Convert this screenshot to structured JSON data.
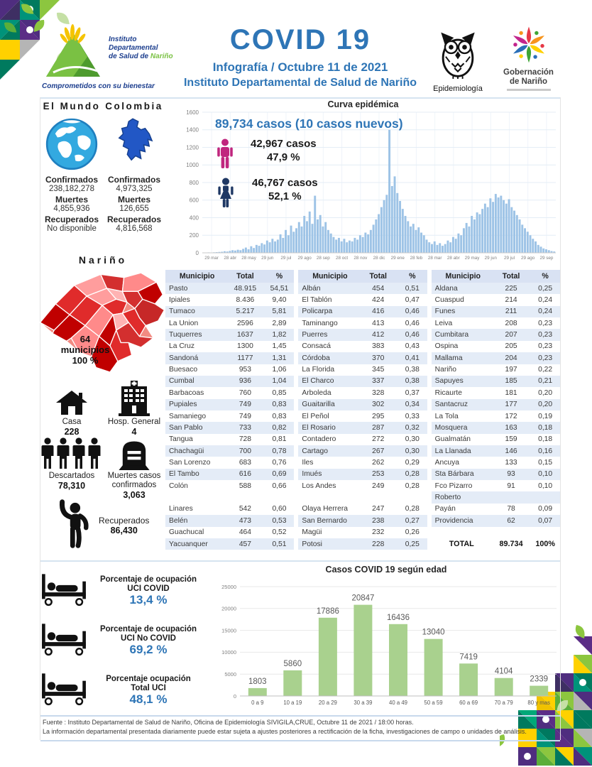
{
  "header": {
    "title": "COVID 19",
    "subtitle": "Infografía / Octubre 11 de 2021",
    "institution": "Instituto Departamental de Salud de Nariño",
    "logo_text_1": "Instituto",
    "logo_text_2": "Departamental",
    "logo_text_3": "de Salud de",
    "logo_text_3b": "Nariño",
    "logo_tagline": "Comprometidos con su bienestar",
    "epidemiologia_label": "Epidemiología",
    "gobernacion_line1": "Gobernación",
    "gobernacion_line2": "de Nariño"
  },
  "world": {
    "heading": "El Mundo",
    "confirmados_label": "Confirmados",
    "confirmados": "238,182,278",
    "muertes_label": "Muertes",
    "muertes": "4,855,936",
    "recuperados_label": "Recuperados",
    "recuperados": "No disponible"
  },
  "colombia": {
    "heading": "Colombia",
    "confirmados_label": "Confirmados",
    "confirmados": "4,973,325",
    "muertes_label": "Muertes",
    "muertes": "126,655",
    "recuperados_label": "Recuperados",
    "recuperados": "4,816,568"
  },
  "epicurve_stats": {
    "total": "89,734 casos (10 casos nuevos)",
    "male_cases": "42,967  casos",
    "male_pct": "47,9 %",
    "female_cases": "46,767  casos",
    "female_pct": "52,1 %"
  },
  "narino": {
    "heading": "Nariño",
    "municipios_count": "64",
    "municipios_label": "municipios",
    "municipios_pct": "100 %",
    "casa_label": "Casa",
    "casa_value": "228",
    "hosp_label": "Hosp. General",
    "hosp_value": "4",
    "descartados_label": "Descartados",
    "descartados_value": "78,310",
    "muertes_label_1": "Muertes casos",
    "muertes_label_2": "confirmados",
    "muertes_value": "3,063",
    "recuperados_label": "Recuperados",
    "recuperados_value": "86,430"
  },
  "table": {
    "headers": [
      "Municipio",
      "Total",
      "%"
    ],
    "total_label": "TOTAL",
    "groups": [
      [
        [
          "Pasto",
          "48.915",
          "54,51"
        ],
        [
          "Ipiales",
          "8.436",
          "9,40"
        ],
        [
          "Tumaco",
          "5.217",
          "5,81"
        ],
        [
          "La Union",
          "2596",
          "2,89"
        ],
        [
          "Tuquerres",
          "1637",
          "1,82"
        ],
        [
          "La Cruz",
          "1300",
          "1,45"
        ],
        [
          "Sandoná",
          "1177",
          "1,31"
        ],
        [
          "Buesaco",
          "953",
          "1,06"
        ],
        [
          "Cumbal",
          "936",
          "1,04"
        ],
        [
          "Barbacoas",
          "760",
          "0,85"
        ],
        [
          "Pupiales",
          "749",
          "0,83"
        ],
        [
          "Samaniego",
          "749",
          "0,83"
        ],
        [
          "San Pablo",
          "733",
          "0,82"
        ],
        [
          "Tangua",
          "728",
          "0,81"
        ],
        [
          "Chachagüi",
          "700",
          "0,78"
        ],
        [
          "San Lorenzo",
          "683",
          "0,76"
        ],
        [
          "El Tambo",
          "616",
          "0,69"
        ],
        [
          "Colón",
          "588",
          "0,66"
        ],
        [
          "",
          "",
          ""
        ],
        [
          "Linares",
          "542",
          "0,60"
        ],
        [
          "Belén",
          "473",
          "0,53"
        ],
        [
          "Guachucal",
          "464",
          "0,52"
        ],
        [
          "Yacuanquer",
          "457",
          "0,51"
        ]
      ],
      [
        [
          "Albán",
          "454",
          "0,51"
        ],
        [
          "El Tablón",
          "424",
          "0,47"
        ],
        [
          "Policarpa",
          "416",
          "0,46"
        ],
        [
          "Taminango",
          "413",
          "0,46"
        ],
        [
          "Puerres",
          "412",
          "0,46"
        ],
        [
          "Consacá",
          "383",
          "0,43"
        ],
        [
          "Córdoba",
          "370",
          "0,41"
        ],
        [
          "La Florida",
          "345",
          "0,38"
        ],
        [
          "El Charco",
          "337",
          "0,38"
        ],
        [
          "Arboleda",
          "328",
          "0,37"
        ],
        [
          "Guaitarilla",
          "302",
          "0,34"
        ],
        [
          "El Peñol",
          "295",
          "0,33"
        ],
        [
          "El Rosario",
          "287",
          "0,32"
        ],
        [
          "Contadero",
          "272",
          "0,30"
        ],
        [
          "Cartago",
          "267",
          "0,30"
        ],
        [
          "Iles",
          "262",
          "0,29"
        ],
        [
          "Imués",
          "253",
          "0,28"
        ],
        [
          "Los Andes",
          "249",
          "0,28"
        ],
        [
          "",
          "",
          ""
        ],
        [
          "Olaya Herrera",
          "247",
          "0,28"
        ],
        [
          "San Bernardo",
          "238",
          "0,27"
        ],
        [
          "Magüi",
          "232",
          "0,26"
        ],
        [
          "Potosi",
          "228",
          "0,25"
        ]
      ],
      [
        [
          "Aldana",
          "225",
          "0,25"
        ],
        [
          "Cuaspud",
          "214",
          "0,24"
        ],
        [
          "Funes",
          "211",
          "0,24"
        ],
        [
          "Leiva",
          "208",
          "0,23"
        ],
        [
          "Cumbitara",
          "207",
          "0,23"
        ],
        [
          "Ospina",
          "205",
          "0,23"
        ],
        [
          "Mallama",
          "204",
          "0,23"
        ],
        [
          "Nariño",
          "197",
          "0,22"
        ],
        [
          "Sapuyes",
          "185",
          "0,21"
        ],
        [
          "Ricaurte",
          "181",
          "0,20"
        ],
        [
          "Santacruz",
          "177",
          "0,20"
        ],
        [
          "La Tola",
          "172",
          "0,19"
        ],
        [
          "Mosquera",
          "163",
          "0,18"
        ],
        [
          "Gualmatán",
          "159",
          "0,18"
        ],
        [
          "La Llanada",
          "146",
          "0,16"
        ],
        [
          "Ancuya",
          "133",
          "0,15"
        ],
        [
          "Sta Bárbara",
          "93",
          "0,10"
        ],
        [
          "Fco Pizarro",
          "91",
          "0,10"
        ],
        [
          "Roberto",
          "",
          ""
        ],
        [
          "Payán",
          "78",
          "0,09"
        ],
        [
          "Providencia",
          "62",
          "0,07"
        ],
        [
          "",
          "",
          ""
        ],
        [
          "TOTAL",
          "89.734",
          "100%"
        ]
      ]
    ]
  },
  "uci": {
    "items": [
      {
        "line1": "Porcentaje de ocupación",
        "line2": "UCI COVID",
        "value": "13,4  %"
      },
      {
        "line1": "Porcentaje de ocupación",
        "line2": "UCI No COVID",
        "value": "69,2  %"
      },
      {
        "line1": "Porcentaje ocupación",
        "line2": "Total UCI",
        "value": "48,1  %"
      }
    ]
  },
  "footer": {
    "line1": "Fuente : Instituto Departamental de Salud de Nariño, Oficina de Epidemiología SIVIGILA,CRUE,  Octubre 11 de 2021 / 18:00  horas.",
    "line2": "La información departamental presentada diariamente puede estar sujeta a ajustes posteriores a  rectificación de la ficha, investigaciones de campo o unidades de análisis."
  },
  "colors": {
    "accent_blue": "#2E75B6",
    "male_pink": "#C0267E",
    "female_navy": "#1F3864",
    "epicurve_bar": "#9DC3E6",
    "age_bar": "#A9D18E",
    "table_stripe": "#E4ECF7",
    "grid_line": "#E4EDF6",
    "axis_text": "#808080",
    "map_red_dark": "#C00000",
    "map_red_light": "#FF9D9D"
  },
  "icons": {
    "world": "globe-icon",
    "colombia": "colombia-map-icon",
    "male": "male-figure-icon",
    "female": "female-figure-icon",
    "house": "house-icon",
    "hospital": "hospital-icon",
    "people": "people-group-icon",
    "tombstone": "tombstone-icon",
    "recovered": "person-waving-icon",
    "bed": "hospital-bed-icon",
    "owl": "owl-icon",
    "star": "gobernacion-star-icon"
  },
  "chart_data": [
    {
      "name": "curva_epidemica",
      "type": "bar",
      "title": "Curva epidémica",
      "annotation": "89,734 casos (10 casos nuevos)",
      "ylim": [
        0,
        1600
      ],
      "yticks": [
        0,
        200,
        400,
        600,
        800,
        1000,
        1200,
        1400,
        1600
      ],
      "x_tick_labels": [
        "29 mar",
        "28 abr",
        "28 may",
        "29 jun",
        "29 jul",
        "29 ago",
        "28 sep",
        "28 oct",
        "28 nov",
        "28 dic",
        "29 ene",
        "28 feb",
        "28 mar",
        "28 abr",
        "29 may",
        "29 jun",
        "29 jul",
        "29 ago",
        "29 sep"
      ],
      "values": [
        2,
        3,
        5,
        4,
        6,
        8,
        10,
        12,
        18,
        15,
        22,
        30,
        26,
        35,
        30,
        45,
        60,
        40,
        75,
        55,
        90,
        80,
        110,
        95,
        140,
        120,
        160,
        130,
        150,
        210,
        170,
        260,
        200,
        310,
        240,
        280,
        350,
        300,
        420,
        360,
        470,
        330,
        650,
        380,
        430,
        300,
        350,
        260,
        220,
        180,
        150,
        170,
        130,
        160,
        120,
        140,
        130,
        170,
        150,
        200,
        180,
        230,
        210,
        260,
        320,
        380,
        440,
        520,
        600,
        660,
        1400,
        760,
        870,
        680,
        590,
        500,
        420,
        360,
        300,
        330,
        260,
        290,
        230,
        200,
        150,
        120,
        100,
        130,
        90,
        110,
        80,
        100,
        140,
        120,
        180,
        160,
        220,
        200,
        280,
        340,
        300,
        420,
        380,
        460,
        440,
        500,
        560,
        520,
        620,
        580,
        670,
        630,
        650,
        600,
        560,
        610,
        520,
        480,
        430,
        380,
        320,
        280,
        240,
        200,
        160,
        130,
        90,
        70,
        50,
        40,
        30,
        20,
        15
      ]
    },
    {
      "name": "casos_covid19_segun_edad",
      "type": "bar",
      "title": "Casos COVID 19  según edad",
      "categories": [
        "0 a 9",
        "10 a 19",
        "20 a 29",
        "30 a 39",
        "40 a 49",
        "50 a 59",
        "60 a 69",
        "70 a 79",
        "80 y mas"
      ],
      "values": [
        1803,
        5860,
        17886,
        20847,
        16436,
        13040,
        7419,
        4104,
        2339
      ],
      "ylim": [
        0,
        25000
      ],
      "yticks": [
        0,
        5000,
        10000,
        15000,
        20000,
        25000
      ]
    }
  ]
}
